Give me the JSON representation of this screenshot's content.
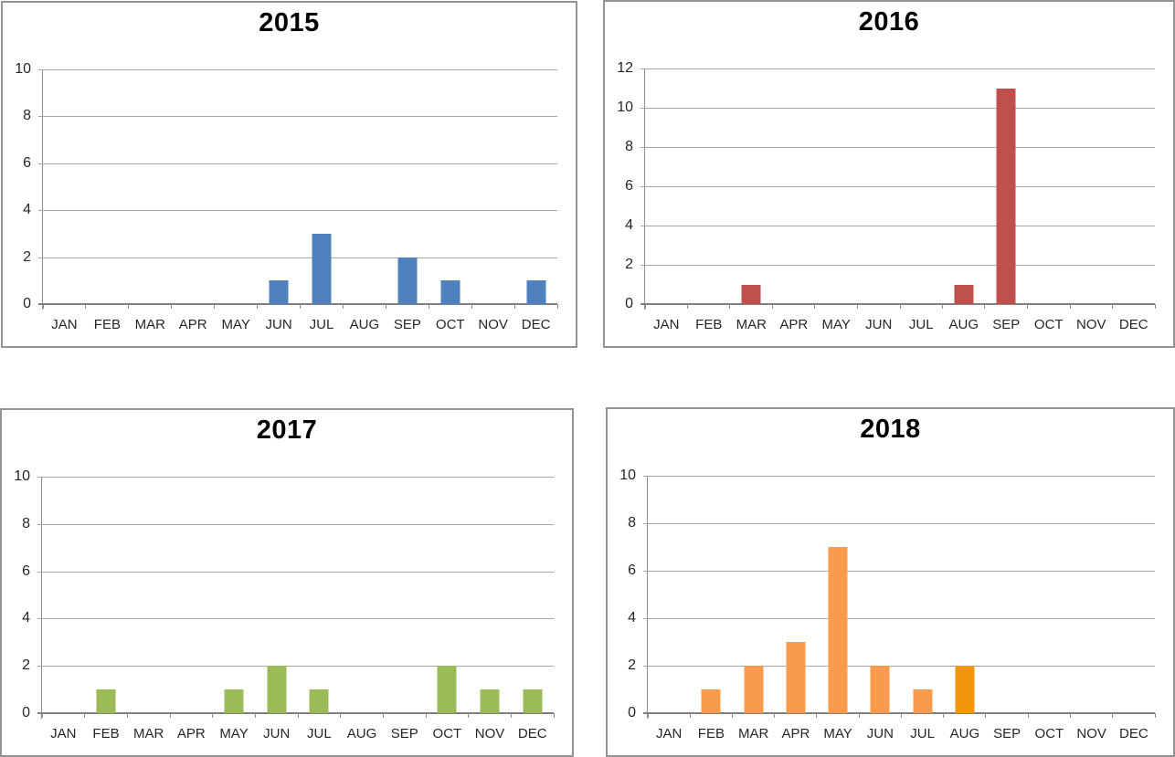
{
  "colors": {
    "panel_border": "#939393",
    "gridline": "#a6a6a6",
    "axis": "#8c8c8c",
    "baseline": "#7f7f7f",
    "text": "#262626",
    "title": "#000000",
    "blue_2015": "#4e81bd",
    "red_2016": "#c0504d",
    "green_2017": "#9bbb59",
    "orange_2018": "#f89b4d",
    "orange_2018_aug": "#f2960d"
  },
  "chart_data": [
    {
      "type": "bar",
      "title": "2015",
      "categories": [
        "JAN",
        "FEB",
        "MAR",
        "APR",
        "MAY",
        "JUN",
        "JUL",
        "AUG",
        "SEP",
        "OCT",
        "NOV",
        "DEC"
      ],
      "values": [
        0,
        0,
        0,
        0,
        0,
        1,
        3,
        0,
        2,
        1,
        0,
        1
      ],
      "xlabel": "",
      "ylabel": "",
      "ylim": [
        0,
        10
      ],
      "yticks": [
        0,
        2,
        4,
        6,
        8,
        10
      ],
      "bar_color": "#4e81bd",
      "bar_color_overrides": {},
      "grid": true,
      "legend": "none"
    },
    {
      "type": "bar",
      "title": "2016",
      "categories": [
        "JAN",
        "FEB",
        "MAR",
        "APR",
        "MAY",
        "JUN",
        "JUL",
        "AUG",
        "SEP",
        "OCT",
        "NOV",
        "DEC"
      ],
      "values": [
        0,
        0,
        1,
        0,
        0,
        0,
        0,
        1,
        11,
        0,
        0,
        0
      ],
      "xlabel": "",
      "ylabel": "",
      "ylim": [
        0,
        12
      ],
      "yticks": [
        0,
        2,
        4,
        6,
        8,
        10,
        12
      ],
      "bar_color": "#c0504d",
      "bar_color_overrides": {},
      "grid": true,
      "legend": "none"
    },
    {
      "type": "bar",
      "title": "2017",
      "categories": [
        "JAN",
        "FEB",
        "MAR",
        "APR",
        "MAY",
        "JUN",
        "JUL",
        "AUG",
        "SEP",
        "OCT",
        "NOV",
        "DEC"
      ],
      "values": [
        0,
        1,
        0,
        0,
        1,
        2,
        1,
        0,
        0,
        2,
        1,
        1
      ],
      "xlabel": "",
      "ylabel": "",
      "ylim": [
        0,
        10
      ],
      "yticks": [
        0,
        2,
        4,
        6,
        8,
        10
      ],
      "bar_color": "#9bbb59",
      "bar_color_overrides": {},
      "grid": true,
      "legend": "none"
    },
    {
      "type": "bar",
      "title": "2018",
      "categories": [
        "JAN",
        "FEB",
        "MAR",
        "APR",
        "MAY",
        "JUN",
        "JUL",
        "AUG",
        "SEP",
        "OCT",
        "NOV",
        "DEC"
      ],
      "values": [
        0,
        1,
        2,
        3,
        7,
        2,
        1,
        2,
        0,
        0,
        0,
        0
      ],
      "xlabel": "",
      "ylabel": "",
      "ylim": [
        0,
        10
      ],
      "yticks": [
        0,
        2,
        4,
        6,
        8,
        10
      ],
      "bar_color": "#f89b4d",
      "bar_color_overrides": {
        "7": "#f2960d"
      },
      "grid": true,
      "legend": "none"
    }
  ]
}
